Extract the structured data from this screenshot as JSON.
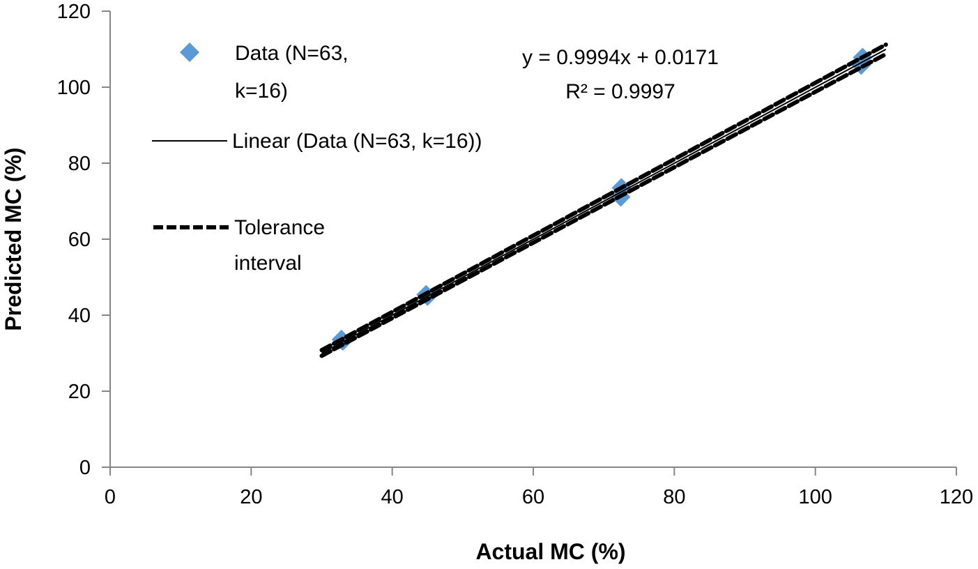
{
  "chart_data": {
    "type": "scatter",
    "title": "",
    "xlabel": "Actual MC (%)",
    "ylabel": "Predicted MC (%)",
    "xlim": [
      0,
      120
    ],
    "ylim": [
      0,
      120
    ],
    "xticks": [
      0,
      20,
      40,
      60,
      80,
      100,
      120
    ],
    "yticks": [
      0,
      20,
      40,
      60,
      80,
      100,
      120
    ],
    "grid": false,
    "legend_placement": "top-left",
    "colors": {
      "data": "#5b9bd5",
      "lines": "#000000"
    },
    "series": [
      {
        "name": "Data (N=63, k=16)",
        "legend_lines": [
          "Data (N=63,",
          "k=16)"
        ],
        "kind": "scatter",
        "marker": "diamond",
        "points": [
          [
            33.0,
            33.2
          ],
          [
            32.8,
            33.6
          ],
          [
            45.0,
            45.0
          ],
          [
            44.8,
            45.4
          ],
          [
            72.5,
            73.5
          ],
          [
            72.4,
            71.1
          ],
          [
            106.7,
            107.8
          ],
          [
            106.5,
            105.8
          ]
        ]
      },
      {
        "name": "Linear (Data (N=63, k=16))",
        "legend_lines": [
          "Linear (Data (N=63, k=16))"
        ],
        "kind": "line",
        "style": "solid",
        "points": [
          [
            30,
            30.0
          ],
          [
            110,
            109.95
          ]
        ]
      },
      {
        "name": "Tolerance interval",
        "legend_lines": [
          "Tolerance",
          "interval"
        ],
        "kind": "line",
        "style": "dashed",
        "upper": [
          [
            30,
            30.8
          ],
          [
            110,
            111.2
          ]
        ],
        "lower": [
          [
            30,
            29.3
          ],
          [
            110,
            108.7
          ]
        ]
      }
    ],
    "annotations": [
      "y = 0.9994x + 0.0171",
      "R² = 0.9997"
    ]
  }
}
